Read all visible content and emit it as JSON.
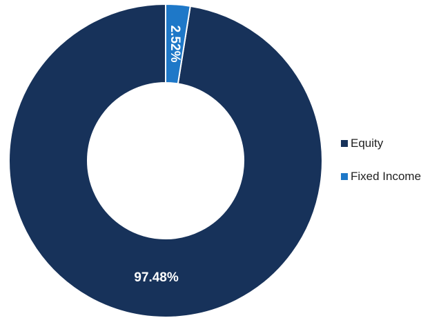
{
  "chart_data": {
    "type": "pie",
    "donut": true,
    "slices": [
      {
        "name": "Equity",
        "value": 97.48,
        "label": "97.48%",
        "color": "#17325a"
      },
      {
        "name": "Fixed Income",
        "value": 2.52,
        "label": "2.52%",
        "color": "#1e78c8"
      }
    ],
    "legend_position": "right",
    "title": ""
  },
  "legend": {
    "items": [
      {
        "label": "Equity",
        "color": "#17325a"
      },
      {
        "label": "Fixed Income",
        "color": "#1e78c8"
      }
    ]
  }
}
